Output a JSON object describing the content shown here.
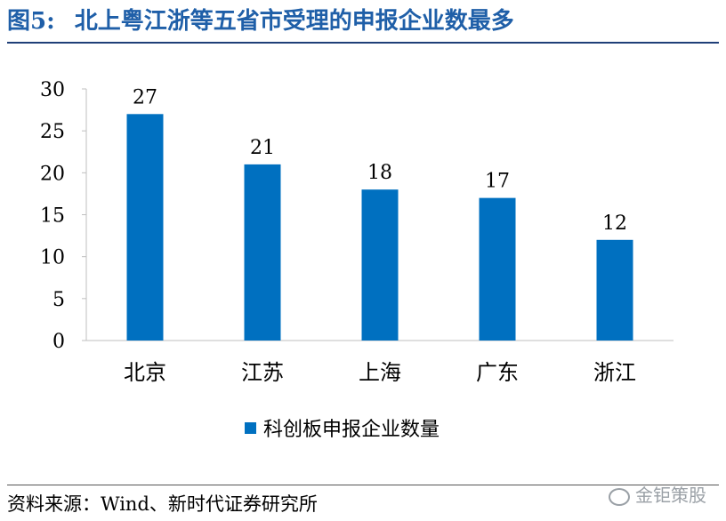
{
  "figure": {
    "number": "图5:",
    "title": "北上粤江浙等五省市受理的申报企业数最多",
    "source": "资料来源：Wind、新时代证券研究所",
    "watermark": "金钜策股"
  },
  "chart_data": {
    "type": "bar",
    "categories": [
      "北京",
      "江苏",
      "上海",
      "广东",
      "浙江"
    ],
    "series": [
      {
        "name": "科创板申报企业数量",
        "values": [
          27,
          21,
          18,
          17,
          12
        ]
      }
    ],
    "ylim": [
      0,
      30
    ],
    "yticks": [
      0,
      5,
      10,
      15,
      20,
      25,
      30
    ],
    "data_labels": true,
    "legend": "bottom-center",
    "grid": false,
    "bar_color": "#0070c0"
  }
}
